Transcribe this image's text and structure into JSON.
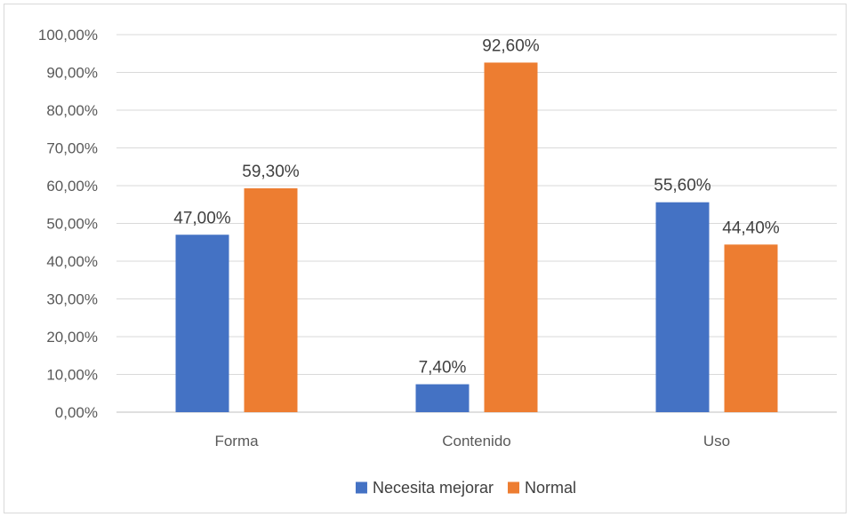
{
  "chart_data": {
    "type": "bar",
    "categories": [
      "Forma",
      "Contenido",
      "Uso"
    ],
    "series": [
      {
        "name": "Necesita mejorar",
        "values": [
          47.0,
          7.4,
          55.6
        ],
        "labels": [
          "47,00%",
          "7,40%",
          "55,60%"
        ],
        "color": "#4472c4"
      },
      {
        "name": "Normal",
        "values": [
          59.3,
          92.6,
          44.4
        ],
        "labels": [
          "59,30%",
          "92,60%",
          "44,40%"
        ],
        "color": "#ed7d31"
      }
    ],
    "ylim": [
      0,
      100
    ],
    "yticks": [
      0,
      10,
      20,
      30,
      40,
      50,
      60,
      70,
      80,
      90,
      100
    ],
    "ytick_labels": [
      "0,00%",
      "10,00%",
      "20,00%",
      "30,00%",
      "40,00%",
      "50,00%",
      "60,00%",
      "70,00%",
      "80,00%",
      "90,00%",
      "100,00%"
    ],
    "grid": true,
    "legend_position": "bottom",
    "gridline_color": "#d9d9d9",
    "axis_color": "#bfbfbf"
  }
}
